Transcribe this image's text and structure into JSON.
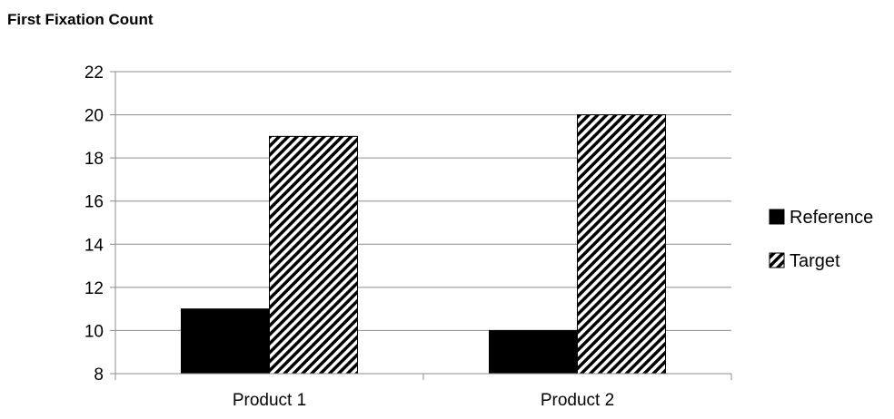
{
  "chart_data": {
    "type": "bar",
    "title": "First Fixation Count",
    "xlabel": "",
    "ylabel": "",
    "categories": [
      "Product 1",
      "Product 2"
    ],
    "series": [
      {
        "name": "Reference",
        "values": [
          11,
          10
        ],
        "color": "#000000",
        "fill": "solid"
      },
      {
        "name": "Target",
        "values": [
          19,
          20
        ],
        "color": "#000000",
        "fill": "diagonal-hatch"
      }
    ],
    "ylim": [
      8,
      22
    ],
    "yticks": [
      8,
      10,
      12,
      14,
      16,
      18,
      20,
      22
    ],
    "grid": true,
    "legend": "right"
  }
}
